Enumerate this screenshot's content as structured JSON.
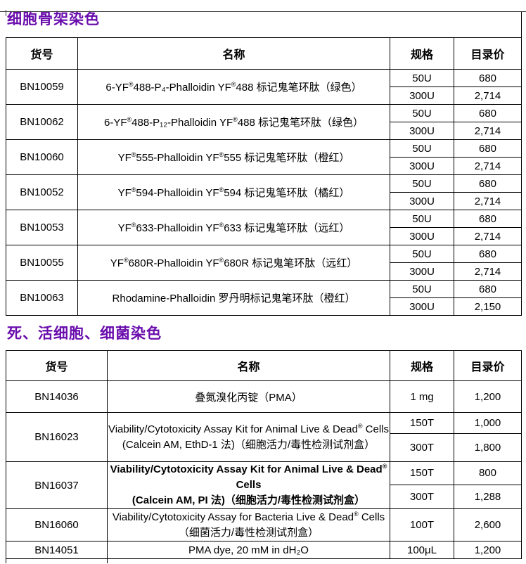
{
  "colors": {
    "title": "#6A0DAD",
    "border": "#000000"
  },
  "section1": {
    "title": "细胞骨架染色",
    "headers": {
      "cat": "货号",
      "name": "名称",
      "spec": "规格",
      "price": "目录价"
    },
    "rows": [
      {
        "cat": "BN10059",
        "name": "6-YF®488-P₄-Phalloidin YF®488 标记鬼笔环肽（绿色）",
        "variants": [
          {
            "spec": "50U",
            "price": "680"
          },
          {
            "spec": "300U",
            "price": "2,714"
          }
        ]
      },
      {
        "cat": "BN10062",
        "name": "6-YF®488-P₁₂-Phalloidin YF®488 标记鬼笔环肽（绿色）",
        "variants": [
          {
            "spec": "50U",
            "price": "680"
          },
          {
            "spec": "300U",
            "price": "2,714"
          }
        ]
      },
      {
        "cat": "BN10060",
        "name": "YF®555-Phalloidin YF®555 标记鬼笔环肽（橙红）",
        "variants": [
          {
            "spec": "50U",
            "price": "680"
          },
          {
            "spec": "300U",
            "price": "2,714"
          }
        ]
      },
      {
        "cat": "BN10052",
        "name": "YF®594-Phalloidin YF®594 标记鬼笔环肽（橘红）",
        "variants": [
          {
            "spec": "50U",
            "price": "680"
          },
          {
            "spec": "300U",
            "price": "2,714"
          }
        ]
      },
      {
        "cat": "BN10053",
        "name": "YF®633-Phalloidin YF®633 标记鬼笔环肽（远红）",
        "variants": [
          {
            "spec": "50U",
            "price": "680"
          },
          {
            "spec": "300U",
            "price": "2,714"
          }
        ]
      },
      {
        "cat": "BN10055",
        "name": "YF®680R-Phalloidin YF®680R 标记鬼笔环肽（远红）",
        "variants": [
          {
            "spec": "50U",
            "price": "680"
          },
          {
            "spec": "300U",
            "price": "2,714"
          }
        ]
      },
      {
        "cat": "BN10063",
        "name": "Rhodamine-Phalloidin 罗丹明标记鬼笔环肽（橙红）",
        "variants": [
          {
            "spec": "50U",
            "price": "680"
          },
          {
            "spec": "300U",
            "price": "2,150"
          }
        ]
      }
    ]
  },
  "section2": {
    "title": "死、活细胞、细菌染色",
    "headers": {
      "cat": "货号",
      "name": "名称",
      "spec": "规格",
      "price": "目录价"
    },
    "rows": [
      {
        "cat": "BN14036",
        "l1": "叠氮溴化丙锭（PMA）",
        "l2": "",
        "variants": [
          {
            "spec": "1 mg",
            "price": "1,200"
          }
        ]
      },
      {
        "cat": "BN16023",
        "l1": "Viability/Cytotoxicity Assay Kit for Animal Live & Dead® Cells",
        "l2": "(Calcein AM, EthD-1 法)（细胞活力/毒性检测试剂盒）",
        "variants": [
          {
            "spec": "150T",
            "price": "1,000"
          },
          {
            "spec": "300T",
            "price": "1,800"
          }
        ]
      },
      {
        "cat": "BN16037",
        "l1": "Viability/Cytotoxicity Assay Kit for Animal Live & Dead® Cells",
        "l2": "(Calcein AM, PI 法)（细胞活力/毒性检测试剂盒）",
        "variants": [
          {
            "spec": "150T",
            "price": "800"
          },
          {
            "spec": "300T",
            "price": "1,288"
          }
        ]
      },
      {
        "cat": "BN16060",
        "l1": "Viability/Cytotoxicity Assay for Bacteria Live & Dead® Cells",
        "l2": "（细菌活力/毒性检测试剂盒）",
        "variants": [
          {
            "spec": "100T",
            "price": "2,600"
          }
        ]
      },
      {
        "cat": "BN14051",
        "l1": "PMA dye, 20 mM in dH₂O",
        "l2": "",
        "variants": [
          {
            "spec": "100μL",
            "price": "1,200"
          }
        ]
      }
    ]
  }
}
